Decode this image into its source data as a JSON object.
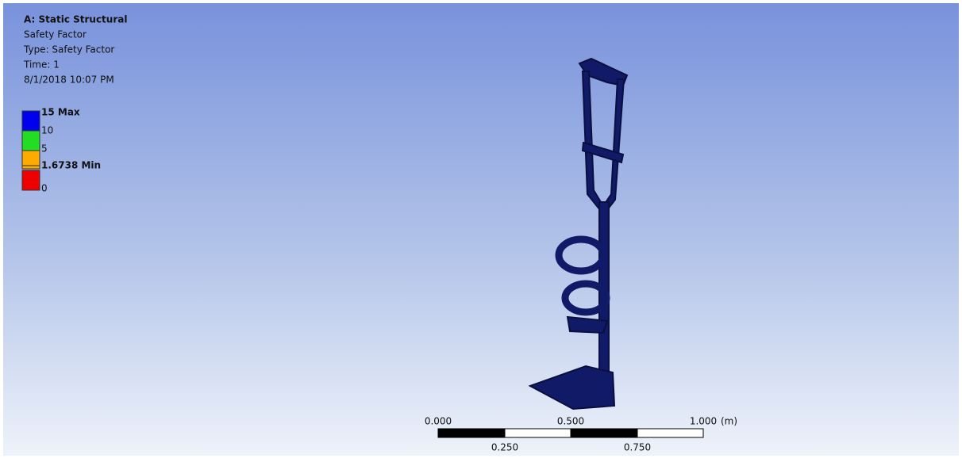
{
  "header": {
    "title": "A: Static Structural",
    "lines": [
      "Safety Factor",
      "Type: Safety Factor",
      "Time: 1",
      "8/1/2018 10:07 PM"
    ]
  },
  "legend": {
    "labels": [
      "15 Max",
      "10",
      "5",
      "1.6738 Min",
      "0"
    ]
  },
  "scale": {
    "top_labels": [
      "0.000",
      "0.500",
      "1.000"
    ],
    "unit": "(m)",
    "bottom_labels": [
      "0.250",
      "0.750"
    ]
  }
}
